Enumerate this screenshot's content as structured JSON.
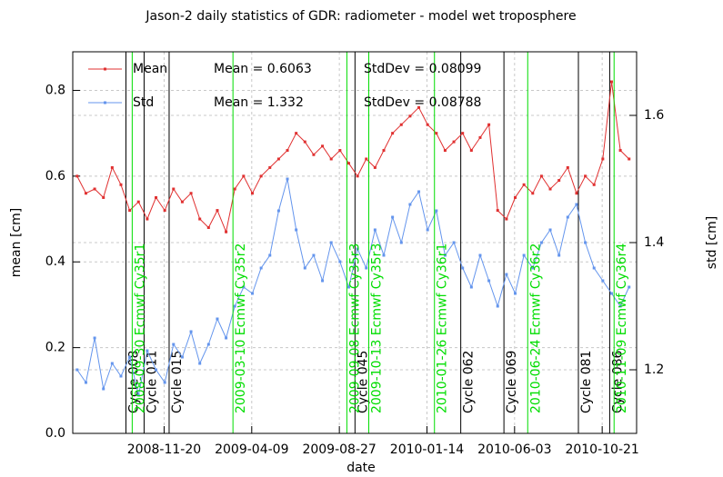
{
  "chart_data": {
    "type": "line",
    "title": "Jason-2 daily statistics of GDR: radiometer - model wet troposphere",
    "x_label": "date",
    "y_label": "mean [cm]",
    "y2_label": "std [cm]",
    "x": [
      "2008-07-04",
      "2008-07-18",
      "2008-08-01",
      "2008-08-15",
      "2008-08-29",
      "2008-09-12",
      "2008-09-26",
      "2008-10-10",
      "2008-10-24",
      "2008-11-07",
      "2008-11-21",
      "2008-12-05",
      "2008-12-19",
      "2009-01-02",
      "2009-01-16",
      "2009-01-30",
      "2009-02-13",
      "2009-02-27",
      "2009-03-13",
      "2009-03-27",
      "2009-04-10",
      "2009-04-24",
      "2009-05-08",
      "2009-05-22",
      "2009-06-05",
      "2009-06-19",
      "2009-07-03",
      "2009-07-17",
      "2009-07-31",
      "2009-08-14",
      "2009-08-28",
      "2009-09-11",
      "2009-09-25",
      "2009-10-09",
      "2009-10-23",
      "2009-11-06",
      "2009-11-20",
      "2009-12-04",
      "2009-12-18",
      "2010-01-01",
      "2010-01-15",
      "2010-01-29",
      "2010-02-12",
      "2010-02-26",
      "2010-03-12",
      "2010-03-26",
      "2010-04-09",
      "2010-04-23",
      "2010-05-07",
      "2010-05-21",
      "2010-06-04",
      "2010-06-18",
      "2010-07-02",
      "2010-07-16",
      "2010-07-30",
      "2010-08-13",
      "2010-08-27",
      "2010-09-10",
      "2010-09-24",
      "2010-10-08",
      "2010-10-22",
      "2010-11-05",
      "2010-11-19",
      "2010-12-03"
    ],
    "series": [
      {
        "name": "Mean",
        "color": "#e03030",
        "axis": "y",
        "stats": [
          "Mean = 0.6063",
          "StdDev = 0.08099"
        ],
        "values": [
          0.6,
          0.56,
          0.57,
          0.55,
          0.62,
          0.58,
          0.52,
          0.54,
          0.5,
          0.55,
          0.52,
          0.57,
          0.54,
          0.56,
          0.5,
          0.48,
          0.52,
          0.47,
          0.57,
          0.6,
          0.56,
          0.6,
          0.62,
          0.64,
          0.66,
          0.7,
          0.68,
          0.65,
          0.67,
          0.64,
          0.66,
          0.63,
          0.6,
          0.64,
          0.62,
          0.66,
          0.7,
          0.72,
          0.74,
          0.76,
          0.72,
          0.7,
          0.66,
          0.68,
          0.7,
          0.66,
          0.69,
          0.72,
          0.52,
          0.5,
          0.55,
          0.58,
          0.56,
          0.6,
          0.57,
          0.59,
          0.62,
          0.56,
          0.6,
          0.58,
          0.64,
          0.82,
          0.66,
          0.64
        ]
      },
      {
        "name": "Std",
        "color": "#6495ed",
        "axis": "y2",
        "stats": [
          "Mean = 1.332",
          "StdDev = 0.08788"
        ],
        "values": [
          1.2,
          1.18,
          1.25,
          1.17,
          1.21,
          1.19,
          1.22,
          1.16,
          1.23,
          1.2,
          1.18,
          1.24,
          1.22,
          1.26,
          1.21,
          1.24,
          1.28,
          1.25,
          1.3,
          1.33,
          1.32,
          1.36,
          1.38,
          1.45,
          1.5,
          1.42,
          1.36,
          1.38,
          1.34,
          1.4,
          1.37,
          1.33,
          1.39,
          1.36,
          1.42,
          1.38,
          1.44,
          1.4,
          1.46,
          1.48,
          1.42,
          1.45,
          1.38,
          1.4,
          1.36,
          1.33,
          1.38,
          1.34,
          1.3,
          1.35,
          1.32,
          1.38,
          1.36,
          1.4,
          1.42,
          1.38,
          1.44,
          1.46,
          1.4,
          1.36,
          1.34,
          1.32,
          1.3,
          1.33
        ]
      }
    ],
    "xlim": [
      "2008-06-27",
      "2010-12-15"
    ],
    "xticks": [
      "2008-11-20",
      "2009-04-09",
      "2009-08-27",
      "2010-01-14",
      "2010-06-03",
      "2010-10-21"
    ],
    "ylim": [
      0,
      0.89
    ],
    "yticks": [
      {
        "value": 0,
        "label": "0.0"
      },
      0.2,
      0.4,
      0.6,
      0.8
    ],
    "y2lim": [
      1.1,
      1.7
    ],
    "y2ticks": [
      1.2,
      1.4,
      1.6
    ],
    "grid": true,
    "legend": "upper left",
    "cycle_color": "#000000",
    "cycle_lines": [
      {
        "x": "2008-09-20",
        "label": "Cycle 008"
      },
      {
        "x": "2008-10-19",
        "label": "Cycle 011"
      },
      {
        "x": "2008-11-28",
        "label": "Cycle 015"
      },
      {
        "x": "2009-09-21",
        "label": "Cycle 045"
      },
      {
        "x": "2010-03-09",
        "label": "Cycle 062"
      },
      {
        "x": "2010-05-17",
        "label": "Cycle 069"
      },
      {
        "x": "2010-09-13",
        "label": "Cycle 081"
      },
      {
        "x": "2010-11-02",
        "label": "Cycle 086"
      }
    ],
    "model_color": "#00dd00",
    "model_lines": [
      {
        "x": "2008-09-30",
        "label": "2008-09-30 Ecmwf Cy35r1"
      },
      {
        "x": "2009-03-10",
        "label": "2009-03-10 Ecmwf Cy35r2"
      },
      {
        "x": "2009-09-08",
        "label": "2009-09-08 Ecmwf Cy35r3"
      },
      {
        "x": "2009-10-13",
        "label": "2009-10-13 Ecmwf Cy35r3"
      },
      {
        "x": "2010-01-26",
        "label": "2010-01-26 Ecmwf Cy36r1"
      },
      {
        "x": "2010-06-24",
        "label": "2010-06-24 Ecmwf Cy36r2"
      },
      {
        "x": "2010-11-09",
        "label": "2010-11-09 Ecmwf Cy36r4"
      }
    ]
  }
}
